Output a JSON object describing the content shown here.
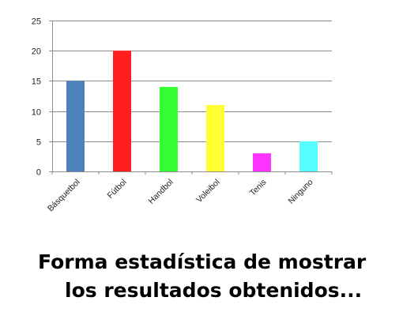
{
  "chart_data": {
    "type": "bar",
    "categories": [
      "Básquetbol",
      "Fútbol",
      "Handbol",
      "Voleibol",
      "Tenis",
      "Ninguno"
    ],
    "values": [
      15,
      20,
      14,
      11,
      3,
      5
    ],
    "colors": [
      "#4f81bd",
      "#ff1f1f",
      "#33ff33",
      "#ffff33",
      "#ff33ff",
      "#55ffff"
    ],
    "title": "",
    "xlabel": "",
    "ylabel": "",
    "ylim": [
      0,
      25
    ],
    "yticks": [
      0,
      5,
      10,
      15,
      20,
      25
    ],
    "grid": true,
    "legend": "none"
  },
  "caption": {
    "line1": "Forma estadística de mostrar",
    "line2": "los resultados obtenidos..."
  }
}
